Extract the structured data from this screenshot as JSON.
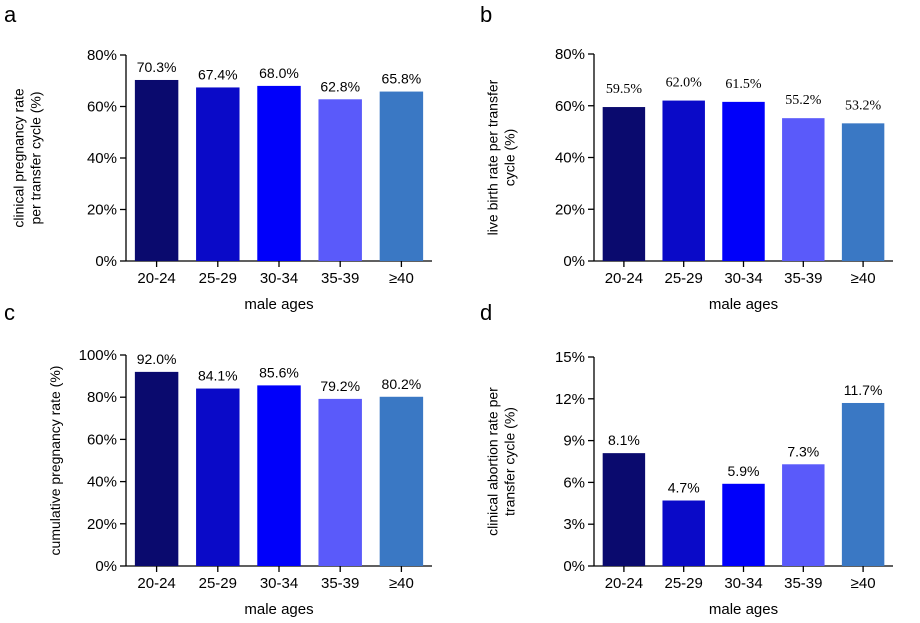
{
  "chart_data": [
    {
      "panel": "a",
      "type": "bar",
      "categories": [
        "20-24",
        "25-29",
        "30-34",
        "35-39",
        "≥40"
      ],
      "values": [
        70.3,
        67.4,
        68.0,
        62.8,
        65.8
      ],
      "data_labels": [
        "70.3%",
        "67.4%",
        "68.0%",
        "62.8%",
        "65.8%"
      ],
      "ylim": [
        0,
        80
      ],
      "yticks": [
        "0%",
        "20%",
        "40%",
        "60%",
        "80%"
      ],
      "xlabel": "male ages",
      "ylabel_lines": [
        "clinical pregnancy rate",
        "per transfer cycle  (%)"
      ],
      "colors": [
        "#0a0a6e",
        "#0a0ac8",
        "#0000fa",
        "#5a5afa",
        "#3a78c4"
      ]
    },
    {
      "panel": "b",
      "type": "bar",
      "categories": [
        "20-24",
        "25-29",
        "30-34",
        "35-39",
        "≥40"
      ],
      "values": [
        59.5,
        62.0,
        61.5,
        55.2,
        53.2
      ],
      "data_labels": [
        "59.5%",
        "62.0%",
        "61.5%",
        "55.2%",
        "53.2%"
      ],
      "ylim": [
        0,
        80
      ],
      "yticks": [
        "0%",
        "20%",
        "40%",
        "60%",
        "80%"
      ],
      "xlabel": "male ages",
      "ylabel_lines": [
        "live birth rate per transfer",
        "cycle  (%)"
      ],
      "colors": [
        "#0a0a6e",
        "#0a0ac8",
        "#0000fa",
        "#5a5afa",
        "#3a78c4"
      ]
    },
    {
      "panel": "c",
      "type": "bar",
      "categories": [
        "20-24",
        "25-29",
        "30-34",
        "35-39",
        "≥40"
      ],
      "values": [
        92.0,
        84.1,
        85.6,
        79.2,
        80.2
      ],
      "data_labels": [
        "92.0%",
        "84.1%",
        "85.6%",
        "79.2%",
        "80.2%"
      ],
      "ylim": [
        0,
        100
      ],
      "yticks": [
        "0%",
        "20%",
        "40%",
        "60%",
        "80%",
        "100%"
      ],
      "xlabel": "male ages",
      "ylabel_lines": [
        "cumulative pregnancy rate  (%)"
      ],
      "colors": [
        "#0a0a6e",
        "#0a0ac8",
        "#0000fa",
        "#5a5afa",
        "#3a78c4"
      ]
    },
    {
      "panel": "d",
      "type": "bar",
      "categories": [
        "20-24",
        "25-29",
        "30-34",
        "35-39",
        "≥40"
      ],
      "values": [
        8.1,
        4.7,
        5.9,
        7.3,
        11.7
      ],
      "data_labels": [
        "8.1%",
        "4.7%",
        "5.9%",
        "7.3%",
        "11.7%"
      ],
      "ylim": [
        0,
        15
      ],
      "yticks": [
        "0%",
        "3%",
        "6%",
        "9%",
        "12%",
        "15%"
      ],
      "xlabel": "male ages",
      "ylabel_lines": [
        "clinical abortion rate per",
        "transfer cycle  (%)"
      ],
      "colors": [
        "#0a0a6e",
        "#0a0ac8",
        "#0000fa",
        "#5a5afa",
        "#3a78c4"
      ]
    }
  ]
}
